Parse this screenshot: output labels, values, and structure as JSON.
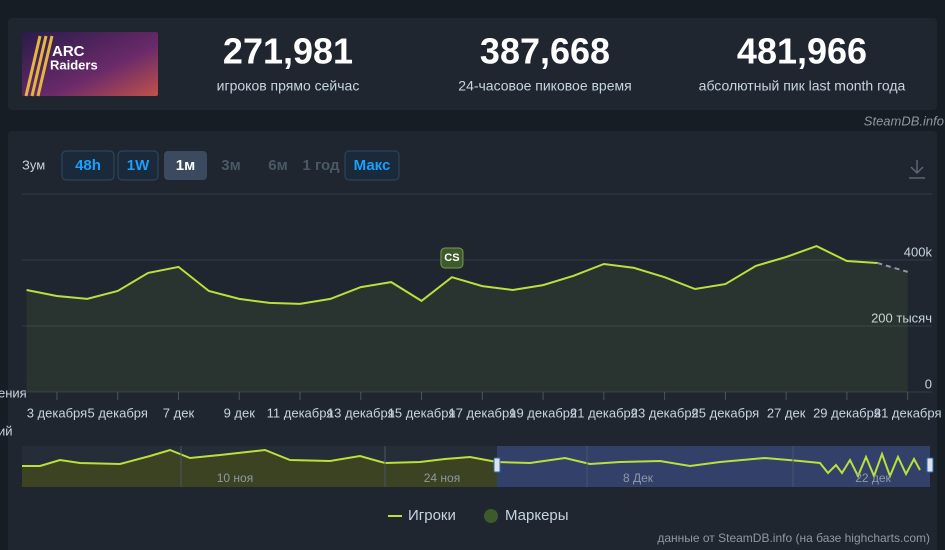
{
  "game": {
    "logo_lines": [
      "ARC",
      "Raiders"
    ]
  },
  "stats": [
    {
      "value": "271,981",
      "label": "игроков прямо сейчас"
    },
    {
      "value": "387,668",
      "label": "24-часовое пиковое время"
    },
    {
      "value": "481,966",
      "label": "абсолютный пик last month года"
    }
  ],
  "watermark": "SteamDB.info",
  "zoom": {
    "label": "Зум",
    "buttons": [
      "48h",
      "1W",
      "1м",
      "3м",
      "6м",
      "1 год",
      "Макс"
    ],
    "active": "1м"
  },
  "cropped_labels": [
    "ения",
    "ий"
  ],
  "chart_data": {
    "type": "line",
    "x": [
      2,
      3,
      4,
      5,
      6,
      7,
      8,
      9,
      10,
      11,
      12,
      13,
      14,
      15,
      16,
      17,
      18,
      19,
      20,
      21,
      22,
      23,
      24,
      25,
      26,
      27,
      28,
      29,
      30,
      31
    ],
    "series": [
      {
        "name": "Игроки",
        "color": "#b9e03c",
        "values": [
          309000,
          291000,
          282000,
          306000,
          361000,
          379000,
          306000,
          282000,
          270000,
          267000,
          282000,
          318000,
          333000,
          276000,
          348000,
          321000,
          309000,
          324000,
          352000,
          388000,
          376000,
          348000,
          312000,
          327000,
          382000,
          409000,
          442000,
          397000,
          391000,
          364000
        ]
      }
    ],
    "last_segment_dashed": true,
    "markers": {
      "name": "Маркеры",
      "color": "#3c5a2a",
      "points": [
        {
          "x": 16,
          "label": "CS"
        }
      ]
    },
    "xlim": [
      1.85,
      31.8
    ],
    "xticks": [
      {
        "value": 3,
        "label": "3 декабря"
      },
      {
        "value": 5,
        "label": "5 декабря"
      },
      {
        "value": 7,
        "label": "7 дек"
      },
      {
        "value": 9,
        "label": "9 дек"
      },
      {
        "value": 11,
        "label": "11 декабря"
      },
      {
        "value": 13,
        "label": "13 декабря"
      },
      {
        "value": 15,
        "label": "15 декабря"
      },
      {
        "value": 17,
        "label": "17 декабря"
      },
      {
        "value": 19,
        "label": "19 декабря"
      },
      {
        "value": 21,
        "label": "21 декабря"
      },
      {
        "value": 23,
        "label": "23 декабря"
      },
      {
        "value": 25,
        "label": "25 декабря"
      },
      {
        "value": 27,
        "label": "27 дек"
      },
      {
        "value": 29,
        "label": "29 декабря"
      },
      {
        "value": 31,
        "label": "31 декабря"
      }
    ],
    "ylim": [
      0,
      600000
    ],
    "yticks": [
      0,
      {
        "value": 200000,
        "label": "200 тысяч"
      },
      {
        "value": 400000,
        "label": "400k"
      }
    ],
    "grid": true
  },
  "navigator": {
    "labels": [
      "10 ноя",
      "24 ноя",
      "8 Дек",
      "22 дек"
    ]
  },
  "credit": "данные от SteamDB.info (на базе highcharts.com)"
}
